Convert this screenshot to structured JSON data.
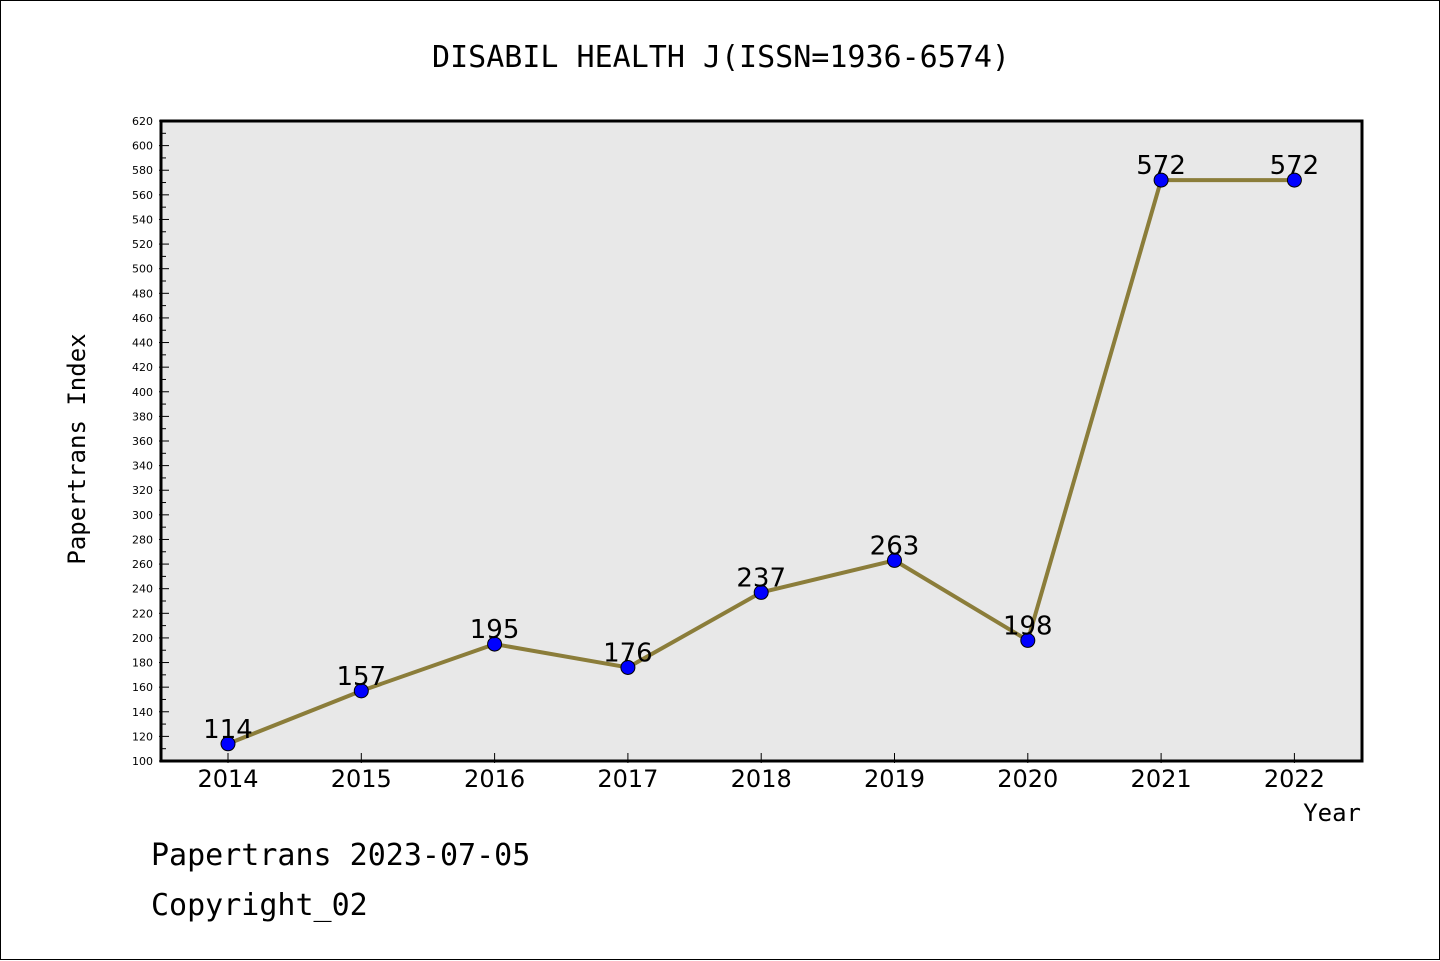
{
  "chart_data": {
    "type": "line",
    "title": "DISABIL HEALTH J(ISSN=1936-6574)",
    "xlabel": "Year",
    "ylabel": "Papertrans Index",
    "categories": [
      "2014",
      "2015",
      "2016",
      "2017",
      "2018",
      "2019",
      "2020",
      "2021",
      "2022"
    ],
    "series": [
      {
        "values": [
          114,
          157,
          195,
          176,
          237,
          263,
          198,
          572,
          572
        ]
      }
    ],
    "ylim": [
      100,
      620
    ],
    "ytick_step": 20,
    "grid": false,
    "line_color": "#8B7D3A",
    "marker_color": "#0000FF",
    "plot_background": "#E8E8E8"
  },
  "footer": {
    "line1": "Papertrans 2023-07-05",
    "line2": "Copyright_02"
  }
}
